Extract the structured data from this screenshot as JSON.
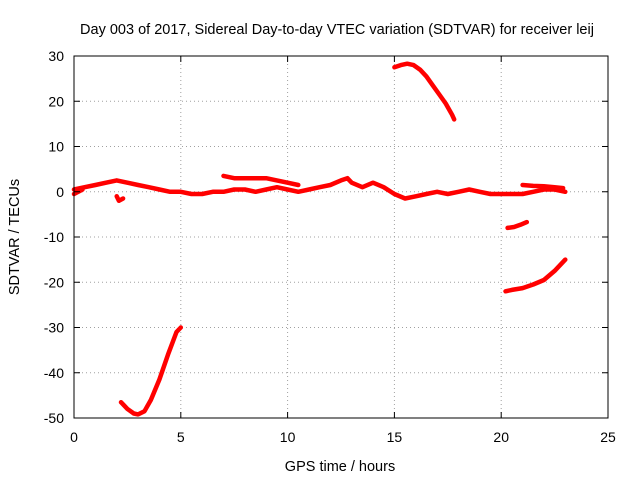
{
  "chart_data": {
    "type": "line",
    "title": "Day 003 of 2017, Sidereal Day-to-day VTEC variation (SDTVAR) for receiver leij",
    "xlabel": "GPS time / hours",
    "ylabel": "SDTVAR / TECUs",
    "xlim": [
      0,
      25
    ],
    "ylim": [
      -50,
      30
    ],
    "xticks": [
      0,
      5,
      10,
      15,
      20,
      25
    ],
    "yticks": [
      -50,
      -40,
      -30,
      -20,
      -10,
      0,
      10,
      20,
      30
    ],
    "grid": true,
    "legend": "none",
    "color": "#ff0000",
    "series": [
      {
        "x": [
          0.0,
          0.5,
          1.0,
          1.5,
          2.0,
          2.5,
          3.0,
          3.5,
          4.0,
          4.5,
          5.0,
          5.5,
          6.0,
          6.5,
          7.0,
          7.5,
          8.0,
          8.5,
          9.0,
          9.5,
          10.0,
          10.5,
          11.0,
          11.5,
          12.0,
          12.5,
          12.8,
          13.0,
          13.5,
          14.0,
          14.5,
          15.0,
          15.5,
          16.0,
          16.5,
          17.0,
          17.5,
          18.0,
          18.5,
          19.0,
          19.5,
          20.0,
          20.5,
          21.0,
          21.5,
          22.0,
          22.5,
          23.0
        ],
        "y": [
          0.5,
          1.0,
          1.5,
          2.0,
          2.5,
          2.0,
          1.5,
          1.0,
          0.5,
          0.0,
          0.0,
          -0.5,
          -0.5,
          0.0,
          0.0,
          0.5,
          0.5,
          0.0,
          0.5,
          1.0,
          0.5,
          0.0,
          0.5,
          1.0,
          1.5,
          2.5,
          3.0,
          2.0,
          1.0,
          2.0,
          1.0,
          -0.5,
          -1.5,
          -1.0,
          -0.5,
          0.0,
          -0.5,
          0.0,
          0.5,
          0.0,
          -0.5,
          -0.5,
          -0.5,
          -0.5,
          0.0,
          0.5,
          0.5,
          0.0
        ]
      },
      {
        "x": [
          7.0,
          7.5,
          8.0,
          8.5,
          9.0,
          9.5,
          10.0,
          10.5
        ],
        "y": [
          3.5,
          3.0,
          3.0,
          3.0,
          3.0,
          2.5,
          2.0,
          1.5
        ]
      },
      {
        "x": [
          15.0,
          15.3,
          15.6,
          15.9,
          16.2,
          16.5,
          16.8,
          17.1,
          17.4,
          17.7,
          17.8
        ],
        "y": [
          27.5,
          28.0,
          28.3,
          28.0,
          27.0,
          25.5,
          23.5,
          21.5,
          19.5,
          17.0,
          16.0
        ]
      },
      {
        "x": [
          2.2,
          2.5,
          2.8,
          3.0,
          3.3,
          3.6,
          4.0,
          4.4,
          4.8,
          5.0
        ],
        "y": [
          -46.5,
          -48.0,
          -49.0,
          -49.2,
          -48.5,
          -46.0,
          -41.5,
          -36.0,
          -31.0,
          -30.0
        ]
      },
      {
        "x": [
          20.2,
          20.5,
          21.0,
          21.5,
          22.0,
          22.5,
          23.0
        ],
        "y": [
          -22.0,
          -21.7,
          -21.3,
          -20.5,
          -19.5,
          -17.5,
          -15.0
        ]
      },
      {
        "x": [
          20.3,
          20.6,
          20.9,
          21.2
        ],
        "y": [
          -8.0,
          -7.8,
          -7.3,
          -6.7
        ]
      },
      {
        "x": [
          21.0,
          21.5,
          22.0,
          22.5,
          22.9
        ],
        "y": [
          1.5,
          1.3,
          1.2,
          1.0,
          0.8
        ]
      },
      {
        "x": [
          2.0,
          2.1,
          2.3
        ],
        "y": [
          -1.0,
          -2.0,
          -1.5
        ]
      },
      {
        "x": [
          0.0,
          0.2,
          0.4
        ],
        "y": [
          -0.5,
          0.0,
          0.5
        ]
      }
    ]
  }
}
